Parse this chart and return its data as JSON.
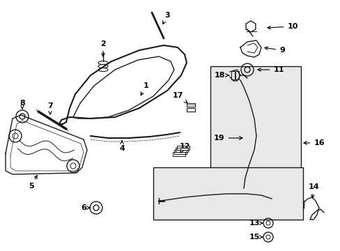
{
  "background_color": "#ffffff",
  "fig_width": 4.89,
  "fig_height": 3.6,
  "dpi": 100,
  "line_color": "#1a1a1a",
  "label_color": "#000000",
  "part_fontsize": 8,
  "shaded_color": "#e0e0e0"
}
